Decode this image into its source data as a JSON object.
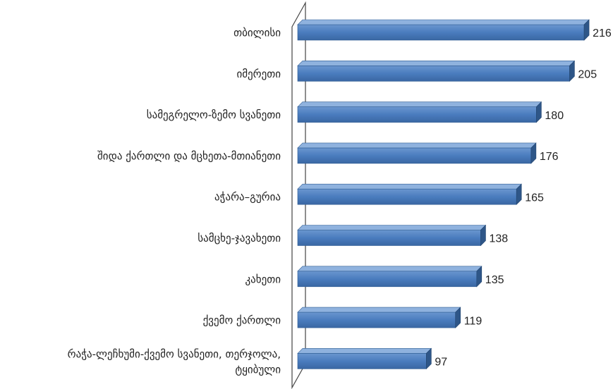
{
  "chart_data": {
    "type": "bar",
    "orientation": "horizontal",
    "style": "3d",
    "grid": false,
    "legend": "none",
    "bar_color": "#4f81bd",
    "categories": [
      "თბილისი",
      "იმერეთი",
      "სამეგრელო-ზემო სვანეთი",
      "შიდა ქართლი და მცხეთა-მთიანეთი",
      "აჭარა–გურია",
      "სამცხე-ჯავახეთი",
      "კახეთი",
      "ქვემო ქართლი",
      "რაჭა-ლეჩხუმი-ქვემო სვანეთი, თერჯოლა, ტყიბული"
    ],
    "values": [
      216,
      205,
      180,
      176,
      165,
      138,
      135,
      119,
      97
    ],
    "data_labels": [
      "216",
      "205",
      "180",
      "176",
      "165",
      "138",
      "135",
      "119",
      "97"
    ]
  }
}
